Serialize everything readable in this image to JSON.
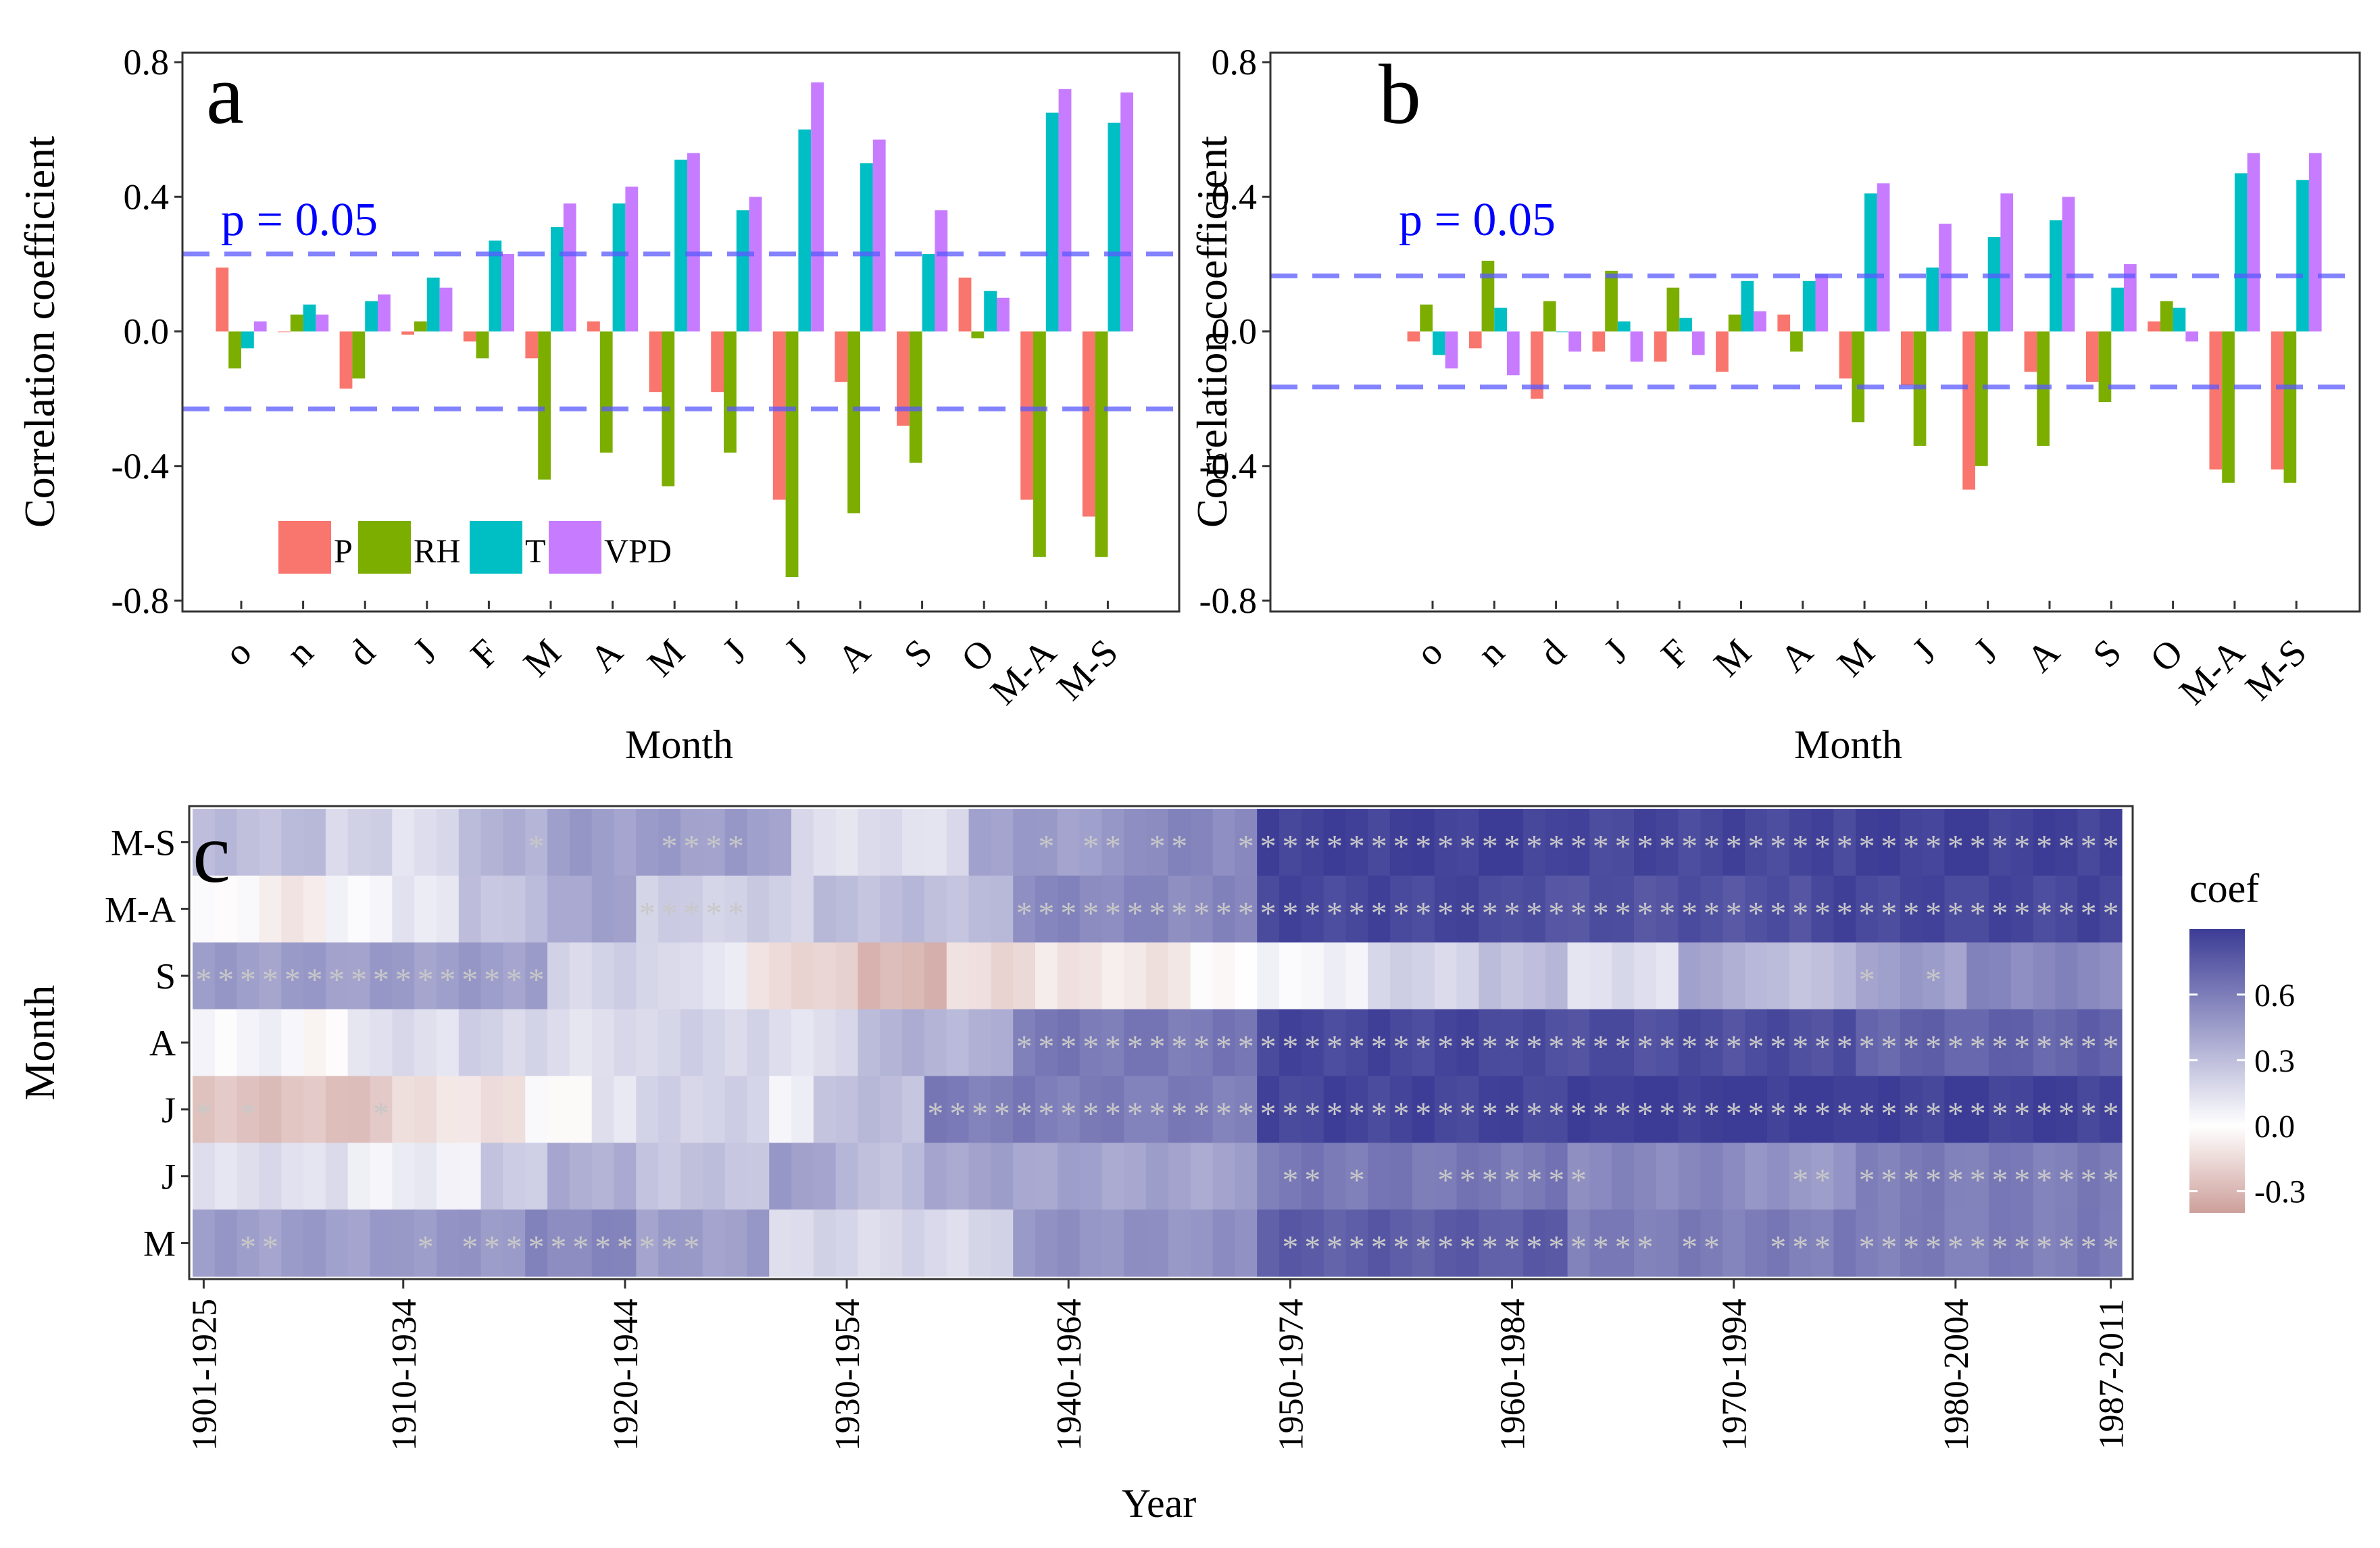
{
  "chart_data": [
    {
      "panel": "a",
      "type": "bar",
      "ylabel": "Correlation coefficient",
      "xlabel": "Month",
      "ylim": [
        -0.8,
        0.8
      ],
      "yticks": [
        0.8,
        0.4,
        0.0,
        -0.4,
        -0.8
      ],
      "ytick_labels": [
        "0.8",
        "0.4",
        "0.0",
        "-0.4",
        "-0.8"
      ],
      "categories": [
        "o",
        "n",
        "d",
        "J",
        "F",
        "M",
        "A",
        "M",
        "J",
        "J",
        "A",
        "S",
        "O",
        "M-A",
        "M-S"
      ],
      "threshold": 0.23,
      "threshold_label": "p = 0.05",
      "series": [
        {
          "name": "P",
          "color": "#F8766D",
          "values": [
            0.19,
            0.0,
            -0.17,
            -0.01,
            -0.03,
            -0.08,
            0.03,
            -0.18,
            -0.18,
            -0.5,
            -0.15,
            -0.28,
            0.16,
            -0.5,
            -0.55
          ]
        },
        {
          "name": "RH",
          "color": "#7CAE00",
          "values": [
            -0.11,
            0.05,
            -0.14,
            0.03,
            -0.08,
            -0.44,
            -0.36,
            -0.46,
            -0.36,
            -0.73,
            -0.54,
            -0.39,
            -0.02,
            -0.67,
            -0.67
          ]
        },
        {
          "name": "T",
          "color": "#00BFC4",
          "values": [
            -0.05,
            0.08,
            0.09,
            0.16,
            0.27,
            0.31,
            0.38,
            0.51,
            0.36,
            0.6,
            0.5,
            0.23,
            0.12,
            0.65,
            0.62
          ]
        },
        {
          "name": "VPD",
          "color": "#C77CFF",
          "values": [
            0.03,
            0.05,
            0.11,
            0.13,
            0.23,
            0.38,
            0.43,
            0.53,
            0.4,
            0.74,
            0.57,
            0.36,
            0.1,
            0.72,
            0.71
          ]
        }
      ]
    },
    {
      "panel": "b",
      "type": "bar",
      "ylabel": "Correlation coefficient",
      "xlabel": "Month",
      "ylim": [
        -0.8,
        0.8
      ],
      "yticks": [
        0.8,
        0.4,
        0.0,
        -0.4,
        -0.8
      ],
      "ytick_labels": [
        "0.8",
        "0.4",
        "0.0",
        "-0.4",
        "-0.8"
      ],
      "categories": [
        "o",
        "n",
        "d",
        "J",
        "F",
        "M",
        "A",
        "M",
        "J",
        "J",
        "A",
        "S",
        "O",
        "M-A",
        "M-S"
      ],
      "threshold": 0.165,
      "threshold_label": "p = 0.05",
      "series": [
        {
          "name": "P",
          "color": "#F8766D",
          "values": [
            -0.03,
            -0.05,
            -0.2,
            -0.06,
            -0.09,
            -0.12,
            0.05,
            -0.14,
            -0.16,
            -0.47,
            -0.12,
            -0.15,
            0.03,
            -0.41,
            -0.41
          ]
        },
        {
          "name": "RH",
          "color": "#7CAE00",
          "values": [
            0.08,
            0.21,
            0.09,
            0.18,
            0.13,
            0.05,
            -0.06,
            -0.27,
            -0.34,
            -0.4,
            -0.34,
            -0.21,
            0.09,
            -0.45,
            -0.45
          ]
        },
        {
          "name": "T",
          "color": "#00BFC4",
          "values": [
            -0.07,
            0.07,
            0.0,
            0.03,
            0.04,
            0.15,
            0.15,
            0.41,
            0.19,
            0.28,
            0.33,
            0.13,
            0.07,
            0.47,
            0.45
          ]
        },
        {
          "name": "VPD",
          "color": "#C77CFF",
          "values": [
            -0.11,
            -0.13,
            -0.06,
            -0.09,
            -0.07,
            0.06,
            0.17,
            0.44,
            0.32,
            0.41,
            0.4,
            0.2,
            -0.03,
            0.53,
            0.53
          ]
        }
      ]
    },
    {
      "panel": "c",
      "type": "heatmap",
      "xlabel": "Year",
      "ylabel": "Month",
      "rows": [
        "M-S",
        "M-A",
        "S",
        "A",
        "J",
        "J",
        "M"
      ],
      "n_windows": 87,
      "xtick_labels": [
        "1901-1925",
        "1910-1934",
        "1920-1944",
        "1930-1954",
        "1940-1964",
        "1950-1974",
        "1960-1984",
        "1970-1994",
        "1980-2004",
        "1987-2011"
      ],
      "xtick_index": [
        0,
        9,
        19,
        29,
        39,
        49,
        59,
        69,
        79,
        86
      ],
      "legend_title": "coef",
      "legend_ticks": [
        0.6,
        0.3,
        0.0,
        -0.3
      ],
      "legend_tick_labels": [
        "0.6",
        "0.3",
        "0.0",
        "-0.3"
      ],
      "color_range": [
        -0.4,
        0.9
      ],
      "segments": [
        [
          [
            0,
            6,
            0.3
          ],
          [
            6,
            9,
            0.2
          ],
          [
            9,
            12,
            0.15
          ],
          [
            12,
            16,
            0.35
          ],
          [
            16,
            24,
            0.45
          ],
          [
            24,
            27,
            0.45
          ],
          [
            27,
            35,
            0.15
          ],
          [
            35,
            42,
            0.45
          ],
          [
            42,
            48,
            0.55
          ],
          [
            48,
            61,
            0.88
          ],
          [
            61,
            75,
            0.85
          ],
          [
            75,
            87,
            0.88
          ]
        ],
        [
          [
            0,
            3,
            0.02
          ],
          [
            3,
            6,
            -0.08
          ],
          [
            6,
            9,
            0.05
          ],
          [
            9,
            12,
            0.12
          ],
          [
            12,
            16,
            0.28
          ],
          [
            16,
            20,
            0.42
          ],
          [
            20,
            28,
            0.22
          ],
          [
            28,
            37,
            0.3
          ],
          [
            37,
            48,
            0.55
          ],
          [
            48,
            59,
            0.85
          ],
          [
            59,
            73,
            0.8
          ],
          [
            73,
            87,
            0.85
          ]
        ],
        [
          [
            0,
            16,
            0.45
          ],
          [
            16,
            22,
            0.2
          ],
          [
            22,
            25,
            0.12
          ],
          [
            25,
            28,
            -0.15
          ],
          [
            28,
            30,
            -0.2
          ],
          [
            30,
            34,
            -0.3
          ],
          [
            34,
            38,
            -0.15
          ],
          [
            38,
            45,
            -0.1
          ],
          [
            45,
            48,
            0.0
          ],
          [
            48,
            53,
            0.05
          ],
          [
            53,
            58,
            0.2
          ],
          [
            58,
            62,
            0.3
          ],
          [
            62,
            67,
            0.15
          ],
          [
            67,
            70,
            0.4
          ],
          [
            70,
            75,
            0.3
          ],
          [
            75,
            80,
            0.45
          ],
          [
            80,
            87,
            0.55
          ]
        ],
        [
          [
            0,
            5,
            0.05
          ],
          [
            5,
            7,
            -0.05
          ],
          [
            7,
            12,
            0.15
          ],
          [
            12,
            16,
            0.2
          ],
          [
            16,
            20,
            0.15
          ],
          [
            20,
            26,
            0.2
          ],
          [
            26,
            30,
            0.15
          ],
          [
            30,
            37,
            0.35
          ],
          [
            37,
            48,
            0.62
          ],
          [
            48,
            59,
            0.85
          ],
          [
            59,
            75,
            0.82
          ],
          [
            75,
            87,
            0.72
          ]
        ],
        [
          [
            0,
            9,
            -0.25
          ],
          [
            9,
            15,
            -0.12
          ],
          [
            15,
            18,
            0.0
          ],
          [
            18,
            20,
            0.12
          ],
          [
            20,
            23,
            0.2
          ],
          [
            23,
            26,
            0.2
          ],
          [
            26,
            28,
            0.05
          ],
          [
            28,
            33,
            0.3
          ],
          [
            33,
            48,
            0.6
          ],
          [
            48,
            62,
            0.86
          ],
          [
            62,
            75,
            0.9
          ],
          [
            75,
            87,
            0.88
          ]
        ],
        [
          [
            0,
            7,
            0.15
          ],
          [
            7,
            13,
            0.08
          ],
          [
            13,
            16,
            0.25
          ],
          [
            16,
            20,
            0.38
          ],
          [
            20,
            26,
            0.28
          ],
          [
            26,
            29,
            0.45
          ],
          [
            29,
            33,
            0.3
          ],
          [
            33,
            48,
            0.42
          ],
          [
            48,
            62,
            0.62
          ],
          [
            62,
            70,
            0.55
          ],
          [
            70,
            75,
            0.48
          ],
          [
            75,
            87,
            0.6
          ]
        ],
        [
          [
            0,
            10,
            0.45
          ],
          [
            10,
            15,
            0.48
          ],
          [
            15,
            20,
            0.55
          ],
          [
            20,
            26,
            0.45
          ],
          [
            26,
            37,
            0.18
          ],
          [
            37,
            48,
            0.5
          ],
          [
            48,
            62,
            0.75
          ],
          [
            62,
            74,
            0.6
          ],
          [
            74,
            87,
            0.6
          ]
        ]
      ],
      "significant": [
        [
          [
            15
          ],
          [
            21,
            22,
            23,
            24
          ],
          [
            38
          ],
          [
            40,
            41
          ],
          [
            43,
            44
          ],
          [
            47,
            48,
            49,
            50,
            51,
            52,
            53,
            54,
            55,
            56,
            57,
            58,
            59,
            60,
            61,
            62,
            63,
            64,
            65,
            66,
            67,
            68,
            69,
            70,
            71,
            72,
            73,
            74,
            75,
            76,
            77,
            78,
            79,
            80,
            81,
            82,
            83,
            84,
            85,
            86
          ]
        ],
        [
          [
            20,
            21,
            22,
            23,
            24
          ],
          [
            37,
            38,
            39,
            40,
            41,
            42,
            43,
            44,
            45,
            46,
            47,
            48,
            49,
            50,
            51,
            52,
            53,
            54,
            55,
            56,
            57,
            58,
            59,
            60,
            61,
            62,
            63,
            64,
            65,
            66,
            67,
            68,
            69,
            70,
            71,
            72,
            73,
            74,
            75,
            76,
            77,
            78,
            79,
            80,
            81,
            82,
            83,
            84,
            85,
            86
          ]
        ],
        [
          [
            0,
            1,
            2,
            3,
            4,
            5,
            6,
            7,
            8,
            9,
            10,
            11,
            12,
            13,
            14,
            15
          ],
          [
            75
          ],
          [
            78
          ]
        ],
        [
          [
            37,
            38,
            39,
            40,
            41,
            42,
            43,
            44,
            45,
            46,
            47,
            48,
            49,
            50,
            51,
            52,
            53,
            54,
            55,
            56,
            57,
            58,
            59,
            60,
            61,
            62,
            63,
            64,
            65,
            66,
            67,
            68,
            69,
            70,
            71,
            72,
            73,
            74,
            75,
            76,
            77,
            78,
            79,
            80,
            81,
            82,
            83,
            84,
            85,
            86
          ]
        ],
        [
          [
            0
          ],
          [
            2
          ],
          [
            8
          ],
          [
            33,
            34,
            35,
            36,
            37,
            38,
            39,
            40,
            41,
            42,
            43,
            44,
            45,
            46,
            47,
            48,
            49,
            50,
            51,
            52,
            53,
            54,
            55,
            56,
            57,
            58,
            59,
            60,
            61,
            62,
            63,
            64,
            65,
            66,
            67,
            68,
            69,
            70,
            71,
            72,
            73,
            74,
            75,
            76,
            77,
            78,
            79,
            80,
            81,
            82,
            83,
            84,
            85,
            86
          ]
        ],
        [
          [
            49,
            50
          ],
          [
            52
          ],
          [
            56,
            57,
            58,
            59,
            60,
            61,
            62
          ],
          [
            72,
            73
          ],
          [
            75,
            76,
            77,
            78,
            79,
            80,
            81,
            82,
            83,
            84,
            85,
            86
          ]
        ],
        [
          [
            2,
            3
          ],
          [
            10
          ],
          [
            12,
            13,
            14,
            15,
            16,
            17,
            18,
            19,
            20,
            21,
            22
          ],
          [
            49,
            50,
            51,
            52,
            53,
            54,
            55,
            56,
            57,
            58,
            59,
            60,
            61,
            62,
            63,
            64,
            65
          ],
          [
            67,
            68
          ],
          [
            71,
            72,
            73
          ],
          [
            75,
            76,
            77,
            78,
            79,
            80,
            81,
            82,
            83,
            84,
            85,
            86
          ]
        ]
      ]
    }
  ]
}
